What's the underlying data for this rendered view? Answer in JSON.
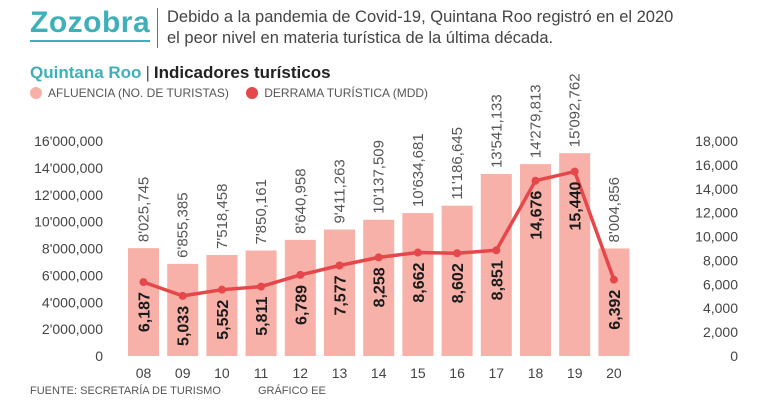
{
  "header": {
    "section": "Zozobra",
    "subtitle_line1": "Debido a la pandemia de Covid-19, Quintana Roo registró en el 2020",
    "subtitle_line2": "el peor nivel en materia turística de la última década."
  },
  "chart_header": {
    "region": "Quintana Roo",
    "separator": "|",
    "title": "Indicadores turísticos"
  },
  "legend": {
    "bars": "AFLUENCIA (NO. DE TURISTAS)",
    "line": "DERRAMA TURÍSTICA (MDD)"
  },
  "footer": {
    "source": "FUENTE: SECRETARÍA DE TURISMO",
    "credit": "GRÁFICO EE"
  },
  "colors": {
    "bar": "#f7b1a8",
    "line": "#e5474a",
    "accent": "#3fb0b9"
  },
  "chart_data": {
    "type": "bar",
    "title": "Indicadores turísticos",
    "categories": [
      "08",
      "09",
      "10",
      "11",
      "12",
      "13",
      "14",
      "15",
      "16",
      "17",
      "18",
      "19",
      "20"
    ],
    "series": [
      {
        "name": "AFLUENCIA (NO. DE TURISTAS)",
        "axis": "left",
        "type": "bar",
        "values": [
          8025745,
          6855385,
          7518458,
          7850161,
          8640958,
          9411263,
          10137509,
          10634681,
          11186645,
          13541133,
          14279813,
          15092762,
          8004856
        ],
        "labels": [
          "8'025,745",
          "6'855,385",
          "7'518,458",
          "7'850,161",
          "8'640,958",
          "9'411,263",
          "10'137,509",
          "10'634,681",
          "11'186,645",
          "13'541,133",
          "14'279,813",
          "15'092,762",
          "8'004,856"
        ]
      },
      {
        "name": "DERRAMA TURÍSTICA (MDD)",
        "axis": "right",
        "type": "line",
        "values": [
          6187,
          5033,
          5552,
          5811,
          6789,
          7577,
          8258,
          8662,
          8602,
          8851,
          14676,
          15440,
          6392
        ],
        "labels": [
          "6,187",
          "5,033",
          "5,552",
          "5,811",
          "6,789",
          "7,577",
          "8,258",
          "8,662",
          "8,602",
          "8,851",
          "14,676",
          "15,440",
          "6,392"
        ]
      }
    ],
    "y_left": {
      "range": [
        0,
        16000000
      ],
      "ticks": [
        "0",
        "2'000,000",
        "4'000,000",
        "6'000,000",
        "8'000,000",
        "10'000,000",
        "12'000,000",
        "14'000,000",
        "16'000,000"
      ]
    },
    "y_right": {
      "range": [
        0,
        18000
      ],
      "ticks": [
        "0",
        "2,000",
        "4,000",
        "6,000",
        "8,000",
        "10,000",
        "12,000",
        "14,000",
        "16,000",
        "18,000"
      ]
    }
  }
}
